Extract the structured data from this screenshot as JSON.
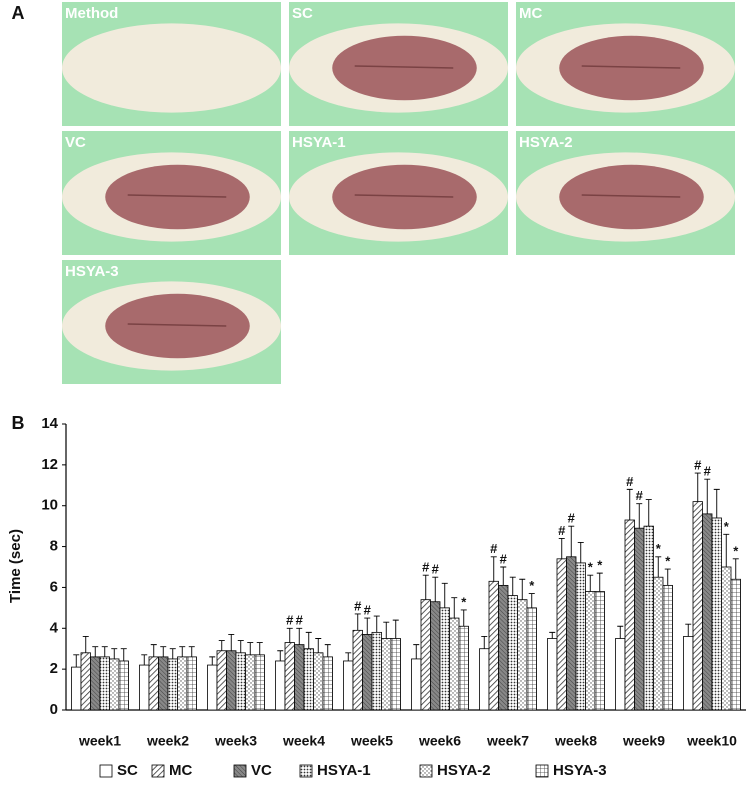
{
  "panel_a": {
    "label": "A",
    "images": [
      {
        "label": "Method"
      },
      {
        "label": "SC"
      },
      {
        "label": "MC"
      },
      {
        "label": "VC"
      },
      {
        "label": "HSYA-1"
      },
      {
        "label": "HSYA-2"
      },
      {
        "label": "HSYA-3"
      }
    ]
  },
  "chart_data": {
    "type": "bar",
    "panel_label": "B",
    "y_label": "Time (sec)",
    "categories": [
      "week1",
      "week2",
      "week3",
      "week4",
      "week5",
      "week6",
      "week7",
      "week8",
      "week9",
      "week10"
    ],
    "ylim": [
      0,
      14
    ],
    "yticks": [
      0,
      2,
      4,
      6,
      8,
      10,
      12,
      14
    ],
    "grid": false,
    "legend": "bottom",
    "series": [
      {
        "name": "SC",
        "color": "#ffffff",
        "pattern": "plain",
        "values": [
          2.1,
          2.2,
          2.2,
          2.4,
          2.4,
          2.5,
          3.0,
          3.5,
          3.5,
          3.6
        ],
        "errors": [
          0.6,
          0.5,
          0.4,
          0.5,
          0.4,
          0.7,
          0.6,
          0.3,
          0.6,
          0.6
        ],
        "markers": [
          null,
          null,
          null,
          null,
          null,
          null,
          null,
          null,
          null,
          null
        ]
      },
      {
        "name": "MC",
        "color": "#ffffff",
        "pattern": "hatch",
        "values": [
          2.8,
          2.6,
          2.9,
          3.3,
          3.9,
          5.4,
          6.3,
          7.4,
          9.3,
          10.2
        ],
        "errors": [
          0.8,
          0.6,
          0.5,
          0.7,
          0.8,
          1.2,
          1.2,
          1.0,
          1.5,
          1.4
        ],
        "markers": [
          null,
          null,
          null,
          "#",
          "#",
          "#",
          "#",
          "#",
          "#",
          "#"
        ]
      },
      {
        "name": "VC",
        "color": "#8a8a8a",
        "pattern": "dark",
        "values": [
          2.6,
          2.6,
          2.9,
          3.2,
          3.7,
          5.3,
          6.1,
          7.5,
          8.9,
          9.6
        ],
        "errors": [
          0.5,
          0.5,
          0.8,
          0.8,
          0.8,
          1.2,
          0.9,
          1.5,
          1.2,
          1.7
        ],
        "markers": [
          null,
          null,
          null,
          "#",
          "#",
          "#",
          "#",
          "#",
          "#",
          "#"
        ]
      },
      {
        "name": "HSYA-1",
        "color": "#ffffff",
        "pattern": "dots",
        "values": [
          2.6,
          2.5,
          2.8,
          3.0,
          3.8,
          5.0,
          5.6,
          7.2,
          9.0,
          9.4
        ],
        "errors": [
          0.5,
          0.5,
          0.6,
          0.8,
          0.8,
          1.2,
          0.9,
          1.0,
          1.3,
          1.4
        ],
        "markers": [
          null,
          null,
          null,
          null,
          null,
          null,
          null,
          null,
          null,
          null
        ]
      },
      {
        "name": "HSYA-2",
        "color": "#ffffff",
        "pattern": "sparse",
        "values": [
          2.5,
          2.6,
          2.7,
          2.8,
          3.5,
          4.5,
          5.4,
          5.8,
          6.5,
          7.0
        ],
        "errors": [
          0.5,
          0.5,
          0.6,
          0.7,
          0.8,
          1.0,
          1.0,
          0.8,
          1.0,
          1.6
        ],
        "markers": [
          null,
          null,
          null,
          null,
          null,
          null,
          null,
          "*",
          "*",
          "*"
        ]
      },
      {
        "name": "HSYA-3",
        "color": "#ffffff",
        "pattern": "grid",
        "values": [
          2.4,
          2.6,
          2.7,
          2.6,
          3.5,
          4.1,
          5.0,
          5.8,
          6.1,
          6.4
        ],
        "errors": [
          0.6,
          0.5,
          0.6,
          0.6,
          0.9,
          0.8,
          0.7,
          0.9,
          0.8,
          1.0
        ],
        "markers": [
          null,
          null,
          null,
          null,
          null,
          "*",
          "*",
          "*",
          "*",
          "*"
        ]
      }
    ]
  }
}
